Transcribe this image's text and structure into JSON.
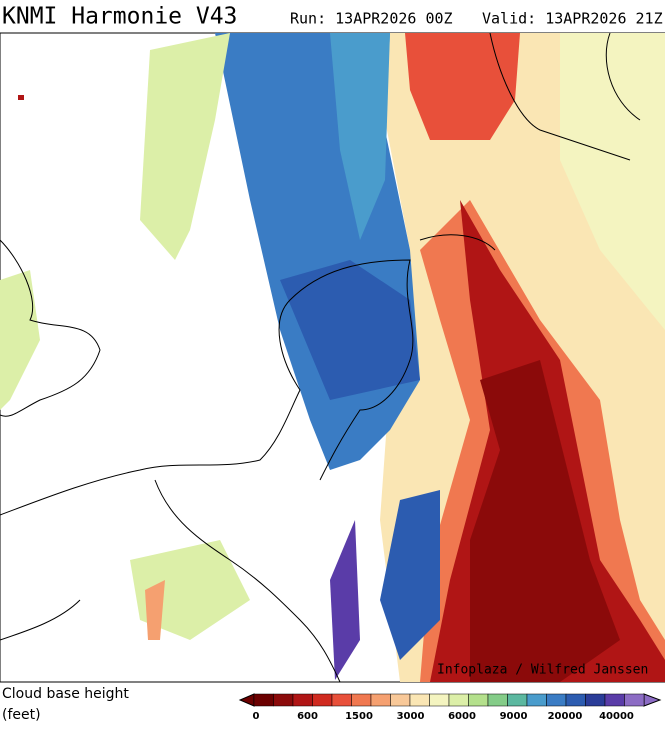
{
  "header": {
    "title": "KNMI Harmonie V43",
    "run": "Run: 13APR2026 00Z",
    "valid": "Valid: 13APR2026 21Z"
  },
  "map": {
    "credit": "Infoplaza / Wilfred Janssen"
  },
  "legend": {
    "title": "Cloud base height",
    "unit": "(feet)",
    "labels": [
      0,
      600,
      1500,
      3000,
      6000,
      9000,
      20000,
      40000
    ],
    "colors": [
      "#6b0000",
      "#8b0a0a",
      "#b01515",
      "#d02a20",
      "#e8503a",
      "#f07850",
      "#f5a070",
      "#f8c898",
      "#fae6b4",
      "#f4f4c0",
      "#dcefa8",
      "#b4e08c",
      "#84cc88",
      "#5cb8a0",
      "#4a9ccc",
      "#3a7cc4",
      "#2c5cb0",
      "#2a3c98",
      "#5a3ca8",
      "#8c6cc4"
    ]
  }
}
